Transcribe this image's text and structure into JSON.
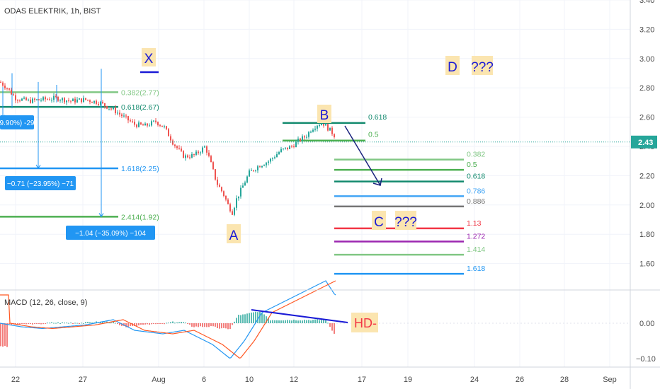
{
  "header": {
    "title": "ODAS ELEKTRIK, 1h, BIST",
    "indicator": "MACD (12, 26, close, 9)"
  },
  "colors": {
    "up": "#26a69a",
    "down": "#ef5350",
    "annotation": "#1a1ad6",
    "tag_bg": "#fbe5b0",
    "measure": "#2196f3",
    "macd": "#2196f3",
    "signal": "#ff5722"
  },
  "chart_data": {
    "type": "candlestick",
    "interval": "1h",
    "price_axis": {
      "ticks": [
        3.4,
        3.2,
        3.0,
        2.8,
        2.6,
        2.4,
        2.2,
        2.0,
        1.8,
        1.6
      ],
      "ylim": [
        1.39,
        3.4
      ]
    },
    "last_price": "2.43",
    "time_axis": {
      "labels": [
        "22",
        "27",
        "Aug",
        "6",
        "10",
        "12",
        "17",
        "19",
        "24",
        "26",
        "28",
        "Sep"
      ]
    },
    "price_path": [
      [
        0,
        2.84
      ],
      [
        10,
        2.8
      ],
      [
        22,
        2.73
      ],
      [
        40,
        2.71
      ],
      [
        60,
        2.72
      ],
      [
        80,
        2.73
      ],
      [
        100,
        2.71
      ],
      [
        120,
        2.72
      ],
      [
        140,
        2.7
      ],
      [
        160,
        2.65
      ],
      [
        175,
        2.6
      ],
      [
        190,
        2.55
      ],
      [
        205,
        2.54
      ],
      [
        220,
        2.57
      ],
      [
        232,
        2.53
      ],
      [
        245,
        2.42
      ],
      [
        260,
        2.33
      ],
      [
        275,
        2.34
      ],
      [
        290,
        2.4
      ],
      [
        298,
        2.28
      ],
      [
        306,
        2.15
      ],
      [
        315,
        2.08
      ],
      [
        322,
        2.0
      ],
      [
        328,
        1.95
      ],
      [
        334,
        2.04
      ],
      [
        342,
        2.12
      ],
      [
        352,
        2.22
      ],
      [
        366,
        2.27
      ],
      [
        380,
        2.3
      ],
      [
        396,
        2.37
      ],
      [
        412,
        2.4
      ],
      [
        422,
        2.44
      ],
      [
        432,
        2.47
      ],
      [
        440,
        2.52
      ],
      [
        448,
        2.55
      ],
      [
        456,
        2.56
      ],
      [
        462,
        2.53
      ],
      [
        468,
        2.5
      ],
      [
        473,
        2.47
      ]
    ],
    "fib_levels": [
      {
        "label": "0.382(2.77)",
        "value": 2.77,
        "color": "#81c784"
      },
      {
        "label": "0.618(2.67)",
        "value": 2.67,
        "color": "#138a6e"
      },
      {
        "label": "1.618(2.25)",
        "value": 2.25,
        "color": "#2196f3"
      },
      {
        "label": "2.414(1.92)",
        "value": 1.92,
        "color": "#4caf50"
      }
    ],
    "retrace_levels": [
      {
        "label": "0.618",
        "value": 2.56,
        "color": "#138a6e"
      },
      {
        "label": "0.5",
        "value": 2.44,
        "color": "#4caf50"
      }
    ],
    "extension_levels": [
      {
        "label": "0.382",
        "value": 2.31,
        "color": "#81c784"
      },
      {
        "label": "0.5",
        "value": 2.24,
        "color": "#4caf50"
      },
      {
        "label": "0.618",
        "value": 2.16,
        "color": "#138a6e"
      },
      {
        "label": "0.786",
        "value": 2.06,
        "color": "#42a5f5"
      },
      {
        "label": "0.886",
        "value": 1.99,
        "color": "#757575"
      },
      {
        "label": "1.13",
        "value": 1.84,
        "color": "#f23645"
      },
      {
        "label": "1.272",
        "value": 1.75,
        "color": "#9c27b0"
      },
      {
        "label": "1.414",
        "value": 1.66,
        "color": "#81c784"
      },
      {
        "label": "1.618",
        "value": 1.53,
        "color": "#2196f3"
      }
    ],
    "measurements": [
      {
        "label": "9.90%) -29",
        "value": 2.59
      },
      {
        "label": "−0.71 (−23.95%) −71",
        "value": 2.15
      },
      {
        "label": "−1.04 (−35.09%) −104",
        "value": 1.82
      }
    ],
    "wave_labels": {
      "x": "X",
      "a": "A",
      "b": "B",
      "c": "C",
      "d": "D",
      "q1": "???",
      "q2": "???"
    },
    "macd_axis": {
      "ticks": [
        "0.00",
        "−0.10"
      ]
    },
    "macd_annotation": "HD-"
  }
}
